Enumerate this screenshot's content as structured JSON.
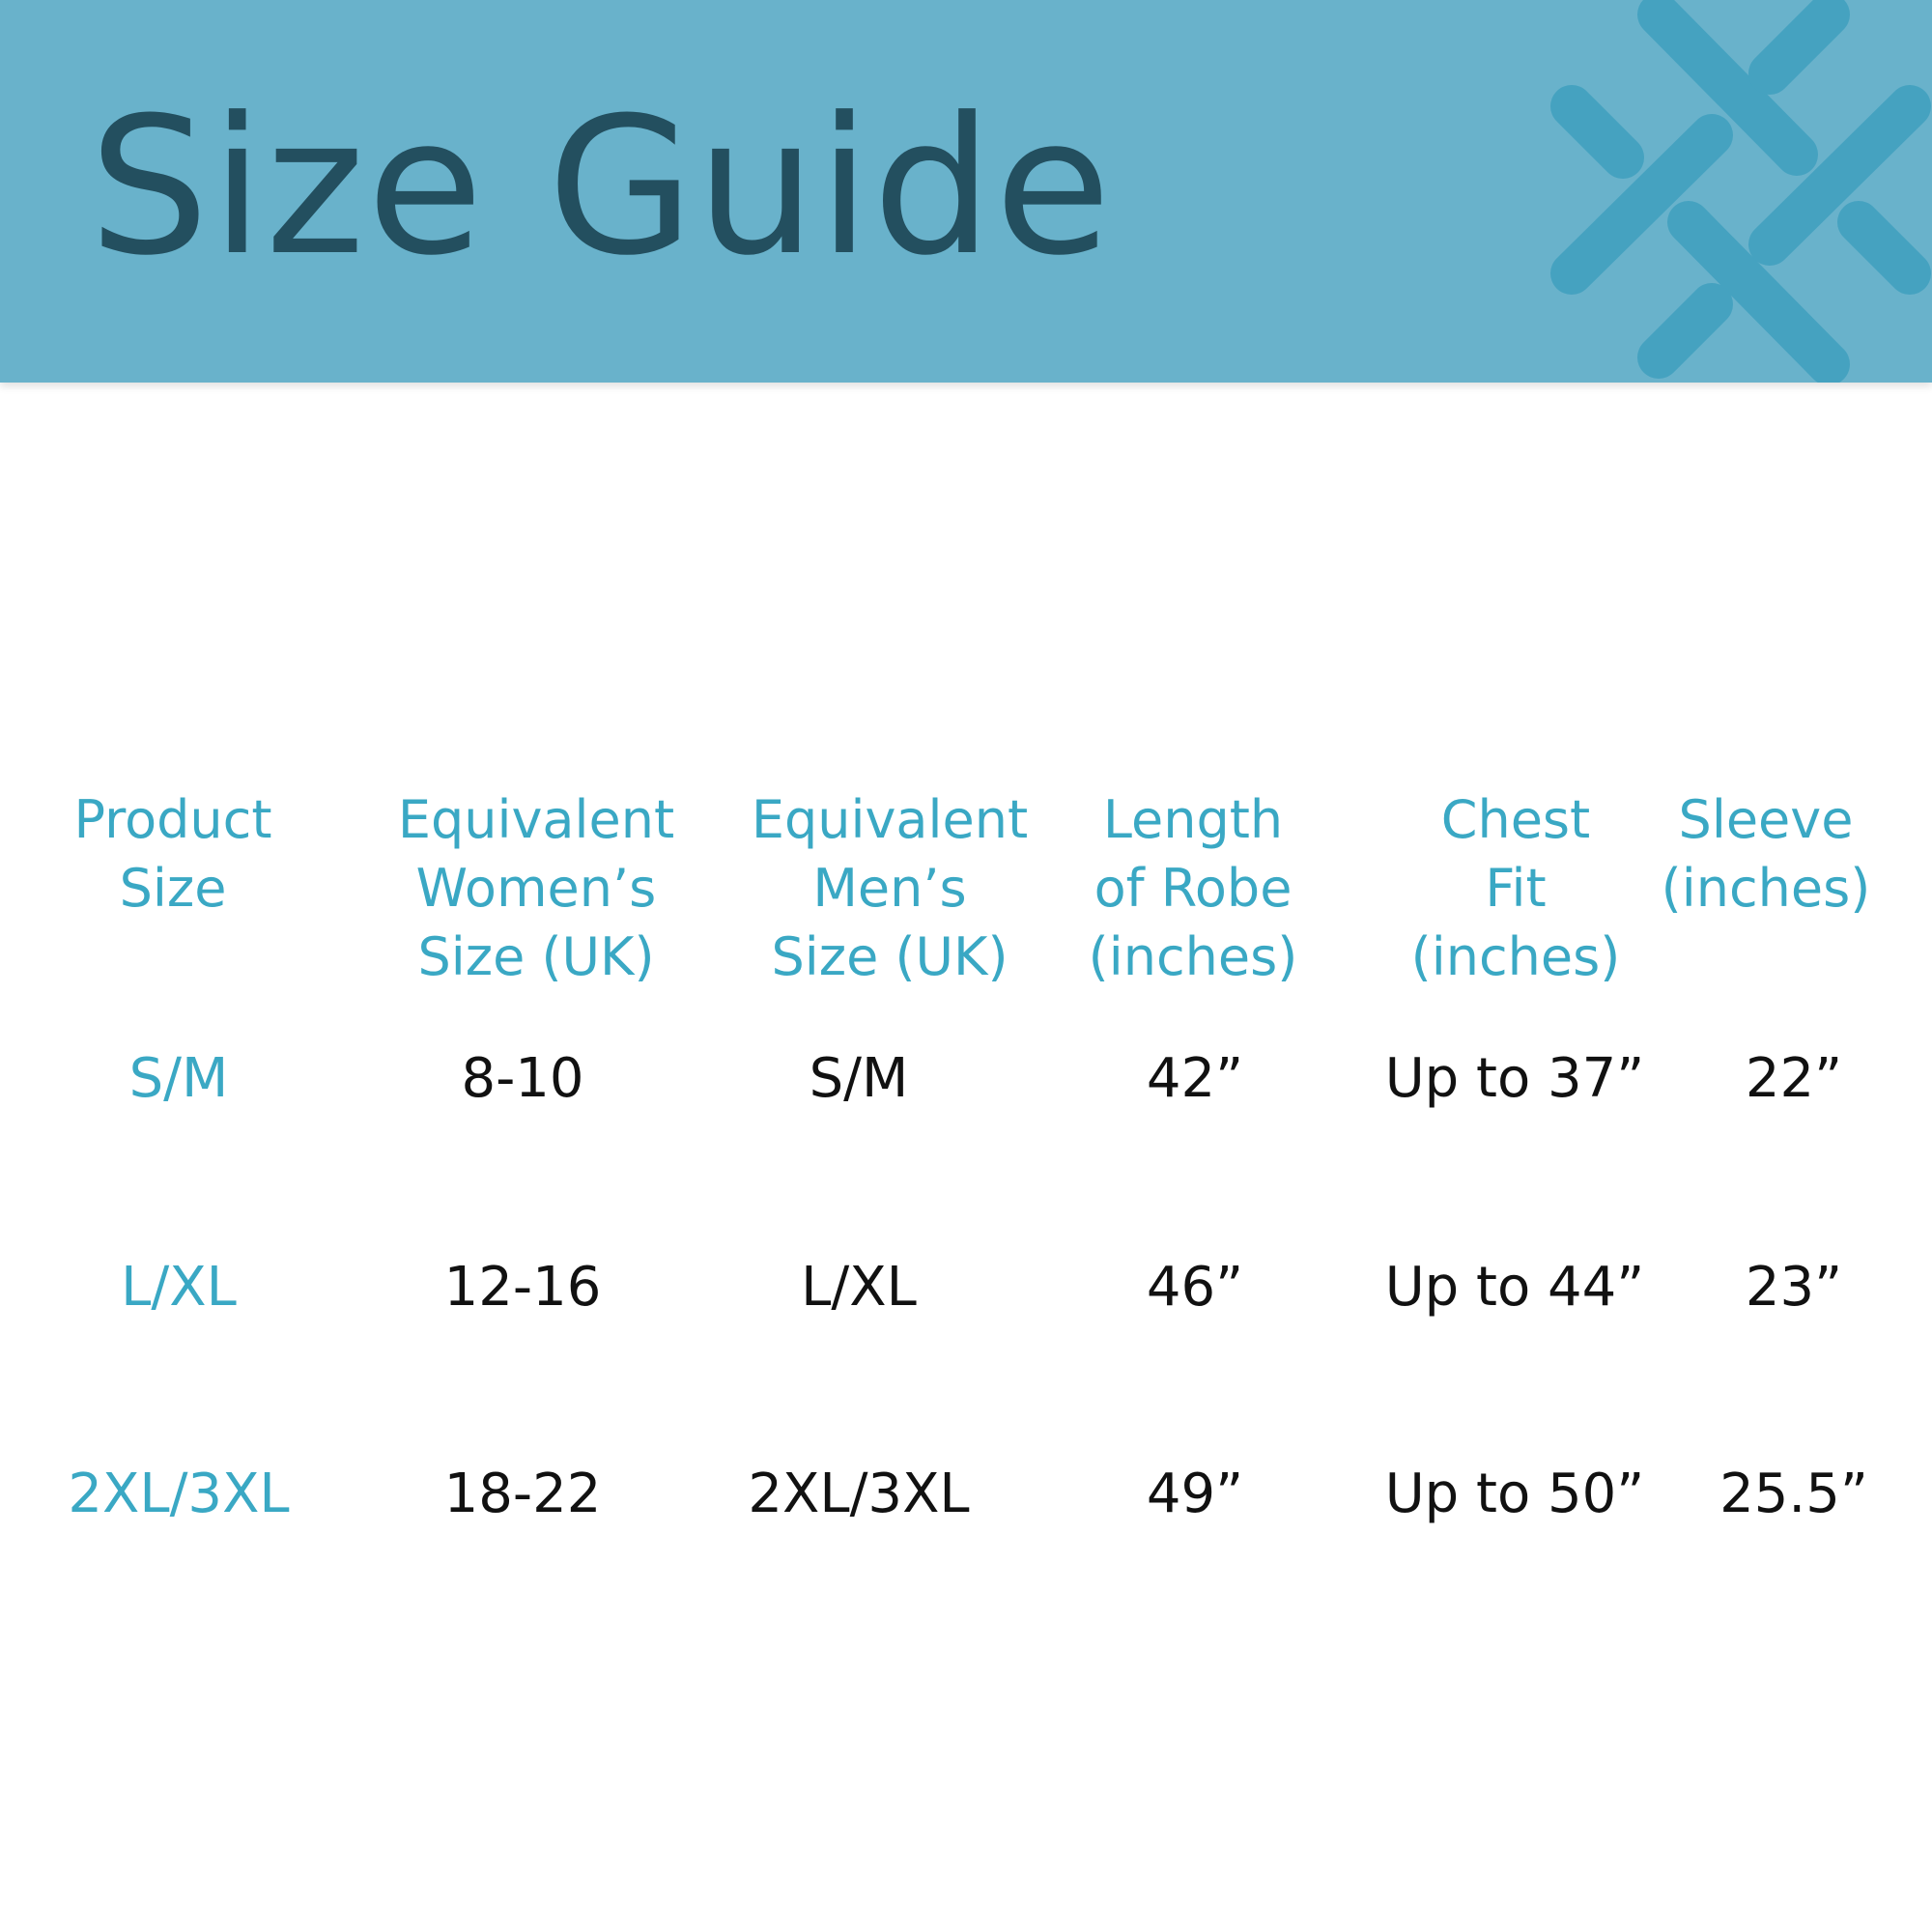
{
  "title": "Size Guide",
  "colors": {
    "banner": "#69b2cb",
    "title": "#234f5f",
    "logo": "#45a2c0",
    "accent_text": "#3aa8c4",
    "body_text": "#111111"
  },
  "logo_icon": "woven-cross-icon",
  "table": {
    "headers": [
      [
        "Product",
        "Size"
      ],
      [
        "Equivalent",
        "Women’s",
        "Size (UK)"
      ],
      [
        "Equivalent",
        "Men’s",
        "Size (UK)"
      ],
      [
        "Length",
        "of Robe",
        "(inches)"
      ],
      [
        "Chest",
        "Fit",
        "(inches)"
      ],
      [
        "Sleeve",
        "(inches)"
      ]
    ],
    "rows": [
      [
        "S/M",
        "8-10",
        "S/M",
        "42”",
        "Up to 37”",
        "22”"
      ],
      [
        "L/XL",
        "12-16",
        "L/XL",
        "46”",
        "Up to 44”",
        "23”"
      ],
      [
        "2XL/3XL",
        "18-22",
        "2XL/3XL",
        "49”",
        "Up to 50”",
        "25.5”"
      ]
    ]
  }
}
